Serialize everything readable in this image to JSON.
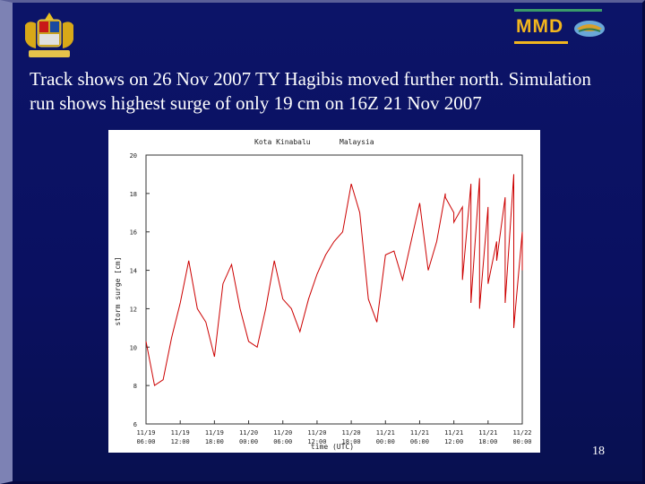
{
  "slide": {
    "title": "Track shows on 26 Nov 2007 TY Hagibis moved further north. Simulation run shows highest surge of only 19 cm on 16Z 21 Nov 2007",
    "page_number": "18",
    "logo_text": "MMD",
    "colors": {
      "background": "#0a1060",
      "text": "#ffffff",
      "logo_gold": "#f2b61e",
      "series": "#cc0000"
    },
    "icons": [
      "malaysia-coat-of-arms-icon",
      "mmd-logo-icon"
    ]
  },
  "chart_data": {
    "type": "line",
    "title_left": "Kota Kinabalu",
    "title_right": "Malaysia",
    "xlabel": "time (UTC)",
    "ylabel": "storm surge [cm]",
    "ylim": [
      6,
      20
    ],
    "yticks": [
      6,
      8,
      10,
      12,
      14,
      16,
      18,
      20
    ],
    "grid": false,
    "x_tick_labels": [
      [
        "11/19",
        "06:00"
      ],
      [
        "11/19",
        "12:00"
      ],
      [
        "11/19",
        "18:00"
      ],
      [
        "11/20",
        "00:00"
      ],
      [
        "11/20",
        "06:00"
      ],
      [
        "11/20",
        "12:00"
      ],
      [
        "11/20",
        "18:00"
      ],
      [
        "11/21",
        "00:00"
      ],
      [
        "11/21",
        "06:00"
      ],
      [
        "11/21",
        "12:00"
      ],
      [
        "11/21",
        "18:00"
      ],
      [
        "11/22",
        "00:00"
      ]
    ],
    "x_hours_from_first_tick": [
      0,
      1.5,
      3,
      4.5,
      6,
      7.5,
      9,
      10.5,
      12,
      13.5,
      15,
      16.5,
      18,
      19.5,
      21,
      22.5,
      24,
      25.5,
      27,
      28.5,
      30,
      31.5,
      33,
      34.5,
      36,
      37.5,
      39,
      40.5,
      42,
      43.5,
      45,
      46.5,
      48,
      49.5,
      51,
      52.5,
      54,
      55.5,
      57,
      58.5,
      60,
      61.5,
      63,
      64.5,
      66
    ],
    "series": [
      {
        "values": [
          10.3,
          8.0,
          8.3,
          10.5,
          12.3,
          14.5,
          12.0,
          11.3,
          9.5,
          13.3,
          14.3,
          12.0,
          10.3,
          10.0,
          12.0,
          14.5,
          12.5,
          12.0,
          10.8,
          12.5,
          13.8,
          14.8,
          15.5,
          16.0,
          18.5,
          17.0,
          12.5,
          11.3,
          14.8,
          15.0,
          13.5,
          15.5,
          17.5,
          14.0,
          15.5,
          18.0,
          17.0,
          17.3,
          18.5,
          18.8,
          17.3,
          15.5,
          17.8,
          19.0,
          16.0
        ]
      },
      {
        "values": [
          17.8,
          16.5,
          13.5,
          12.3,
          12.0,
          13.3,
          14.5,
          12.3,
          11.0,
          14.0
        ]
      }
    ]
  }
}
